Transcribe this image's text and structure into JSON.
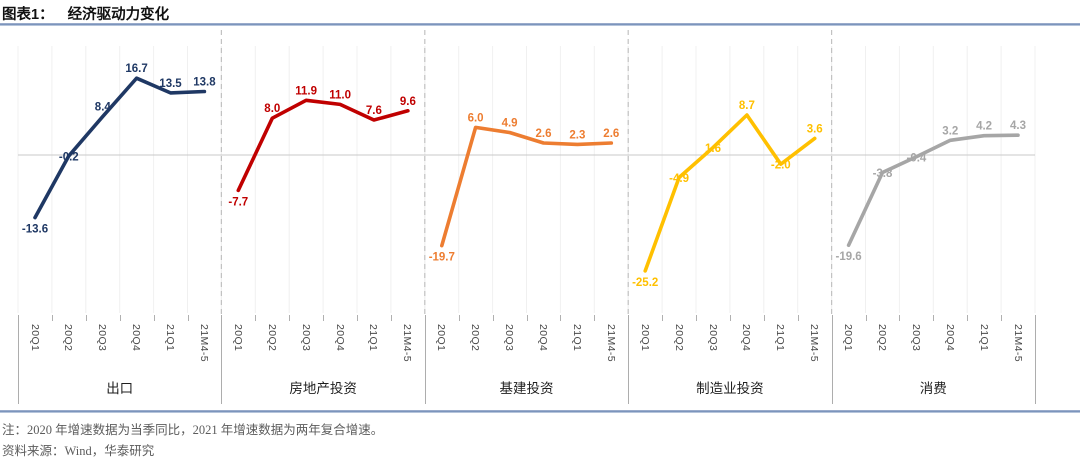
{
  "header": {
    "figure_label": "图表1：",
    "title": "经济驱动力变化"
  },
  "chart_data": {
    "type": "line",
    "title": "经济驱动力变化",
    "categories": [
      "20Q1",
      "20Q2",
      "20Q3",
      "20Q4",
      "21Q1",
      "21M4-5"
    ],
    "value_format": "one-decimal",
    "ylim": [
      -27,
      19
    ],
    "zero_line": true,
    "grid": "vertical-light",
    "panels": [
      {
        "id": "exports",
        "name": "出口",
        "color": "#1F3864",
        "values": [
          -13.6,
          -0.2,
          8.4,
          16.7,
          13.5,
          13.8
        ],
        "label_pos": [
          "below",
          "center",
          "above",
          "above",
          "above",
          "above"
        ]
      },
      {
        "id": "real-estate-investment",
        "name": "房地产投资",
        "color": "#C00000",
        "values": [
          -7.7,
          8.0,
          11.9,
          11.0,
          7.6,
          9.6
        ],
        "label_pos": [
          "below",
          "above",
          "above",
          "above",
          "above",
          "above"
        ]
      },
      {
        "id": "infrastructure-investment",
        "name": "基建投资",
        "color": "#ED7D31",
        "values": [
          -19.7,
          6.0,
          4.9,
          2.6,
          2.3,
          2.6
        ],
        "label_pos": [
          "below",
          "above",
          "above",
          "above",
          "above",
          "above"
        ]
      },
      {
        "id": "manufacturing-investment",
        "name": "制造业投资",
        "color": "#FFC000",
        "values": [
          -25.2,
          -4.9,
          1.6,
          8.7,
          -2.0,
          3.6
        ],
        "label_pos": [
          "below",
          "center",
          "center",
          "above",
          "center",
          "above"
        ]
      },
      {
        "id": "consumption",
        "name": "消费",
        "color": "#A6A6A6",
        "values": [
          -19.6,
          -3.8,
          -0.4,
          3.2,
          4.2,
          4.3
        ],
        "label_pos": [
          "below",
          "center",
          "center",
          "above",
          "above",
          "above"
        ]
      }
    ]
  },
  "footer": {
    "note": "注：2020 年增速数据为当季同比，2021 年增速数据为两年复合增速。",
    "source": "资料来源：Wind，华泰研究"
  }
}
